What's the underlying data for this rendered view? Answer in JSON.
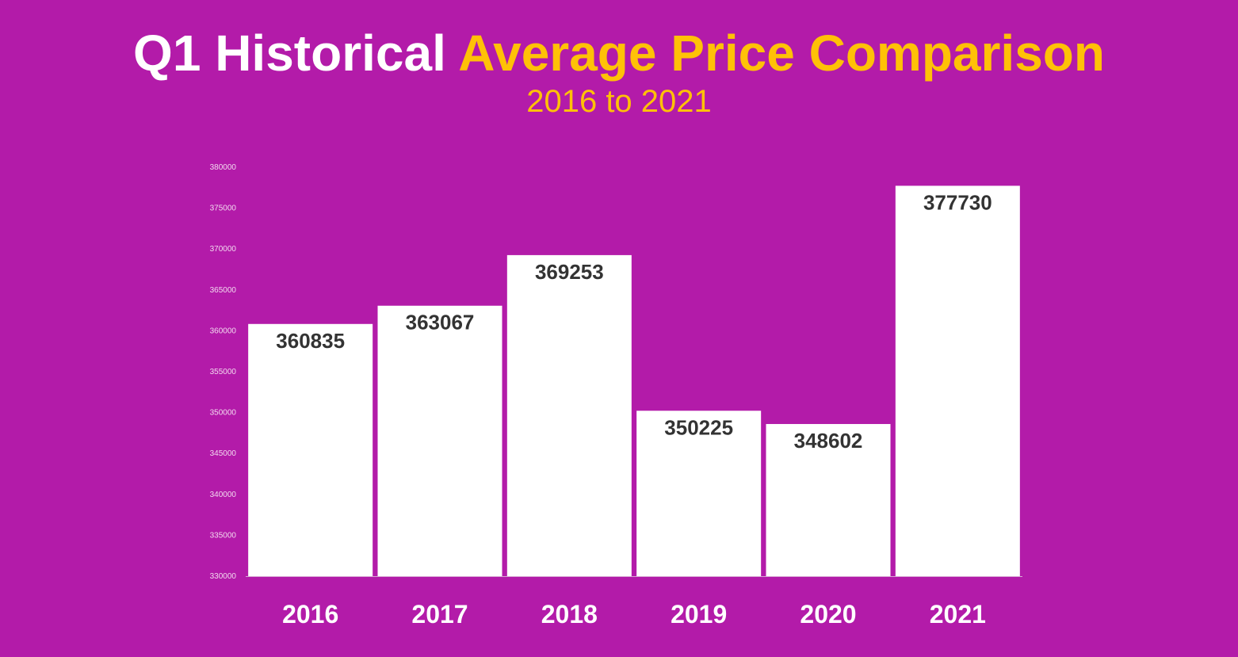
{
  "title": {
    "part1": "Q1 Historical",
    "part2": "Average Price Comparison"
  },
  "subtitle": "2016 to 2021",
  "colors": {
    "background": "#b31ba9",
    "title_primary": "#ffffff",
    "title_accent": "#ffc107",
    "bar": "#ffffff",
    "value_label": "#333333",
    "category_label": "#ffffff",
    "tick_label": "#f2d9ef"
  },
  "chart_data": {
    "type": "bar",
    "categories": [
      "2016",
      "2017",
      "2018",
      "2019",
      "2020",
      "2021"
    ],
    "values": [
      360835,
      363067,
      369253,
      350225,
      348602,
      377730
    ],
    "ylim": [
      330000,
      380000
    ],
    "yticks": [
      380000,
      375000,
      370000,
      365000,
      360000,
      355000,
      350000,
      345000,
      340000,
      335000,
      330000
    ],
    "xlabel": "",
    "ylabel": "",
    "grid": false,
    "legend": "none",
    "data_labels": true
  }
}
